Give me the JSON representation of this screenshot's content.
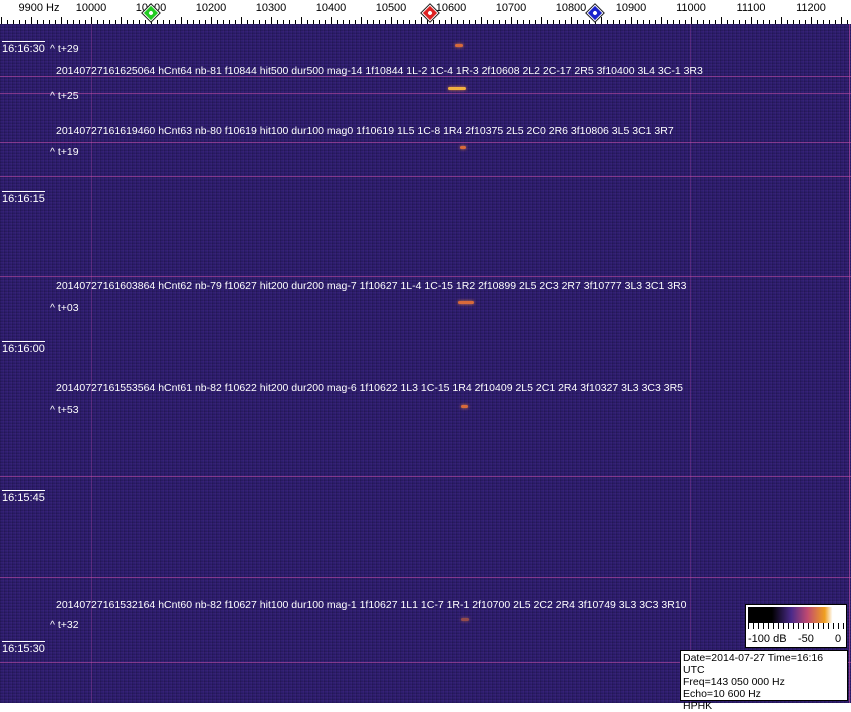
{
  "chart_data": {
    "type": "heatmap",
    "xlabel_unit": "Hz",
    "xticks": [
      "9900 Hz",
      "10000",
      "10100",
      "10200",
      "10300",
      "10400",
      "10500",
      "10600",
      "10700",
      "10800",
      "10900",
      "11000",
      "11100",
      "11200"
    ],
    "xtick_values": [
      9900,
      10000,
      10100,
      10200,
      10300,
      10400,
      10500,
      10600,
      10700,
      10800,
      10900,
      11000,
      11100,
      11200
    ],
    "xlim": [
      9800,
      11275
    ],
    "markers": [
      {
        "color": "#22cc22",
        "freq": 10100
      },
      {
        "color": "#dd2222",
        "freq": 10565
      },
      {
        "color": "#1a22cc",
        "freq": 10840
      }
    ],
    "time_labels": [
      "16:16:30",
      "16:16:15",
      "16:16:00",
      "16:15:45",
      "16:15:30"
    ],
    "offset_labels": [
      "^ t+29",
      "^ t+25",
      "^ t+19",
      "^ t+03",
      "^ t+53",
      "^ t+32"
    ],
    "detections": [
      "20140727161625064 hCnt64 nb-81 f10844 hit500 dur500 mag-14 1f10844 1L-2 1C-4 1R-3 2f10608 2L2 2C-17 2R5 3f10400 3L4 3C-1 3R3",
      "20140727161619460 hCnt63 nb-80 f10619 hit100 dur100 mag0 1f10619 1L5 1C-8 1R4 2f10375 2L5 2C0 2R6 3f10806 3L5 3C1 3R7",
      "20140727161603864 hCnt62 nb-79 f10627 hit200 dur200 mag-7 1f10627 1L-4 1C-15 1R2 2f10899 2L5 2C3 2R7 3f10777 3L3 3C1 3R3",
      "20140727161553564 hCnt61 nb-82 f10622 hit200 dur200 mag-6 1f10622 1L3 1C-15 1R4 2f10409 2L5 2C1 2R4 3f10327 3L3 3C3 3R5",
      "20140727161532164 hCnt60 nb-82 f10627 hit100 dur100 mag-1 1f10627 1L1 1C-7 1R-1 2f10700 2L5 2C2 2R4 3f10749 3L3 3C3 3R10"
    ],
    "colorbar": {
      "labels": [
        "-100 dB",
        "-50",
        "0"
      ],
      "range": [
        -100,
        0
      ]
    },
    "colors": {
      "background": "#2c1d6c",
      "echo": "#d86a3a"
    }
  },
  "info": {
    "line1": "Date=2014-07-27 Time=16:16 UTC",
    "line2": "Freq=143 050 000 Hz",
    "line3": "Echo=10 600 Hz",
    "line4": "HPHK"
  }
}
